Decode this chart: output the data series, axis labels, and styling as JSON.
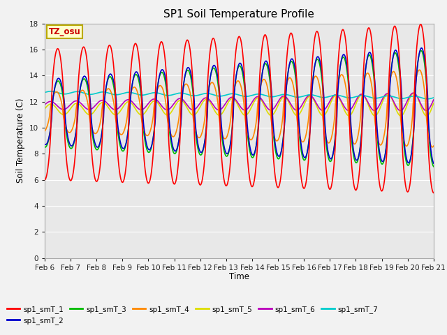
{
  "title": "SP1 Soil Temperature Profile",
  "xlabel": "Time",
  "ylabel": "Soil Temperature (C)",
  "ylim": [
    0,
    18
  ],
  "yticks": [
    0,
    2,
    4,
    6,
    8,
    10,
    12,
    14,
    16,
    18
  ],
  "x_labels": [
    "Feb 6",
    "Feb 7",
    "Feb 8",
    "Feb 9",
    "Feb 10",
    "Feb 11",
    "Feb 12",
    "Feb 13",
    "Feb 14",
    "Feb 15",
    "Feb 16",
    "Feb 17",
    "Feb 18",
    "Feb 19",
    "Feb 20",
    "Feb 21"
  ],
  "colors": {
    "sp1_smT_1": "#FF0000",
    "sp1_smT_2": "#0000CC",
    "sp1_smT_3": "#00BB00",
    "sp1_smT_4": "#FF8800",
    "sp1_smT_5": "#DDDD00",
    "sp1_smT_6": "#BB00BB",
    "sp1_smT_7": "#00CCCC"
  },
  "tz_label": "TZ_osu",
  "fig_facecolor": "#F2F2F2",
  "plot_facecolor": "#E8E8E8"
}
